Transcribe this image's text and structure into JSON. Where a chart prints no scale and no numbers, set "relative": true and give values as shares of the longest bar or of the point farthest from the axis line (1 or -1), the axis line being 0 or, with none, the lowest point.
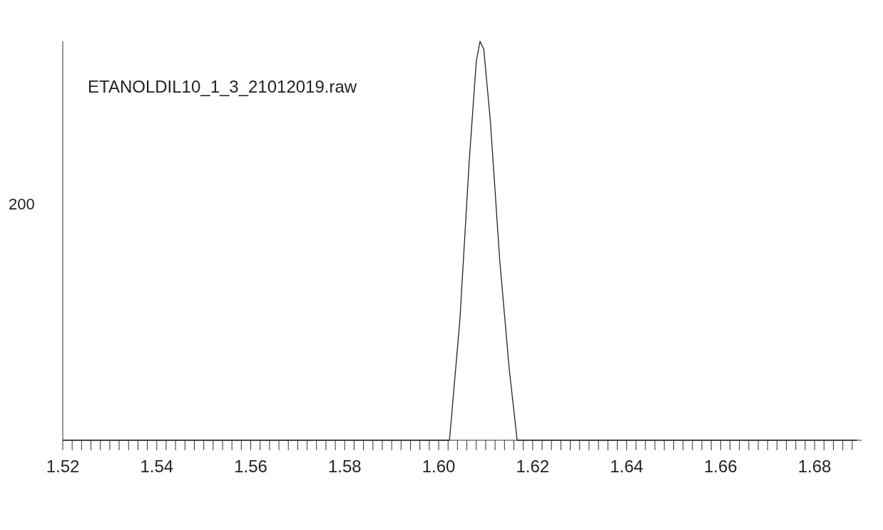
{
  "chart_data": {
    "type": "line",
    "relative": true,
    "annotations": [
      "ETANOLDIL10_1_3_21012019.raw",
      "200"
    ],
    "series": [
      {
        "color": "#222222",
        "x": [
          1.52,
          1.56,
          1.6,
          1.6023,
          1.6045,
          1.6065,
          1.608,
          1.6088,
          1.6096,
          1.611,
          1.613,
          1.615,
          1.6167,
          1.64,
          1.689
        ],
        "values": [
          0,
          0,
          0,
          0,
          0.3,
          0.7,
          0.95,
          1,
          0.98,
          0.8,
          0.45,
          0.18,
          0,
          0,
          0
        ]
      }
    ],
    "xlim": [
      1.52,
      1.69
    ],
    "xticks": [
      1.52,
      {
        "value": 1.522,
        "label": null
      },
      {
        "value": 1.524,
        "label": null
      },
      {
        "value": 1.526,
        "label": null
      },
      {
        "value": 1.528,
        "label": null
      },
      {
        "value": 1.53,
        "label": null
      },
      {
        "value": 1.532,
        "label": null
      },
      {
        "value": 1.534,
        "label": null
      },
      {
        "value": 1.536,
        "label": null
      },
      {
        "value": 1.538,
        "label": null
      },
      1.54,
      {
        "value": 1.542,
        "label": null
      },
      {
        "value": 1.544,
        "label": null
      },
      {
        "value": 1.546,
        "label": null
      },
      {
        "value": 1.548,
        "label": null
      },
      {
        "value": 1.55,
        "label": null
      },
      {
        "value": 1.552,
        "label": null
      },
      {
        "value": 1.554,
        "label": null
      },
      {
        "value": 1.556,
        "label": null
      },
      {
        "value": 1.558,
        "label": null
      },
      1.56,
      {
        "value": 1.562,
        "label": null
      },
      {
        "value": 1.564,
        "label": null
      },
      {
        "value": 1.566,
        "label": null
      },
      {
        "value": 1.568,
        "label": null
      },
      {
        "value": 1.57,
        "label": null
      },
      {
        "value": 1.572,
        "label": null
      },
      {
        "value": 1.574,
        "label": null
      },
      {
        "value": 1.576,
        "label": null
      },
      {
        "value": 1.578,
        "label": null
      },
      1.58,
      {
        "value": 1.582,
        "label": null
      },
      {
        "value": 1.584,
        "label": null
      },
      {
        "value": 1.586,
        "label": null
      },
      {
        "value": 1.588,
        "label": null
      },
      {
        "value": 1.59,
        "label": null
      },
      {
        "value": 1.592,
        "label": null
      },
      {
        "value": 1.594,
        "label": null
      },
      {
        "value": 1.596,
        "label": null
      },
      {
        "value": 1.598,
        "label": null
      },
      {
        "value": 1.6,
        "label": "1.60"
      },
      {
        "value": 1.602,
        "label": null
      },
      {
        "value": 1.604,
        "label": null
      },
      {
        "value": 1.606,
        "label": null
      },
      {
        "value": 1.608,
        "label": null
      },
      {
        "value": 1.61,
        "label": null
      },
      {
        "value": 1.612,
        "label": null
      },
      {
        "value": 1.614,
        "label": null
      },
      {
        "value": 1.616,
        "label": null
      },
      {
        "value": 1.618,
        "label": null
      },
      1.62,
      {
        "value": 1.622,
        "label": null
      },
      {
        "value": 1.624,
        "label": null
      },
      {
        "value": 1.626,
        "label": null
      },
      {
        "value": 1.628,
        "label": null
      },
      {
        "value": 1.63,
        "label": null
      },
      {
        "value": 1.632,
        "label": null
      },
      {
        "value": 1.634,
        "label": null
      },
      {
        "value": 1.636,
        "label": null
      },
      {
        "value": 1.638,
        "label": null
      },
      1.64,
      {
        "value": 1.642,
        "label": null
      },
      {
        "value": 1.644,
        "label": null
      },
      {
        "value": 1.646,
        "label": null
      },
      {
        "value": 1.648,
        "label": null
      },
      {
        "value": 1.65,
        "label": null
      },
      {
        "value": 1.652,
        "label": null
      },
      {
        "value": 1.654,
        "label": null
      },
      {
        "value": 1.656,
        "label": null
      },
      {
        "value": 1.658,
        "label": null
      },
      1.66,
      {
        "value": 1.662,
        "label": null
      },
      {
        "value": 1.664,
        "label": null
      },
      {
        "value": 1.666,
        "label": null
      },
      {
        "value": 1.668,
        "label": null
      },
      {
        "value": 1.67,
        "label": null
      },
      {
        "value": 1.672,
        "label": null
      },
      {
        "value": 1.674,
        "label": null
      },
      {
        "value": 1.676,
        "label": null
      },
      {
        "value": 1.678,
        "label": null
      },
      1.68,
      {
        "value": 1.682,
        "label": null
      },
      {
        "value": 1.684,
        "label": null
      },
      {
        "value": 1.686,
        "label": null
      },
      {
        "value": 1.688,
        "label": null
      }
    ]
  }
}
